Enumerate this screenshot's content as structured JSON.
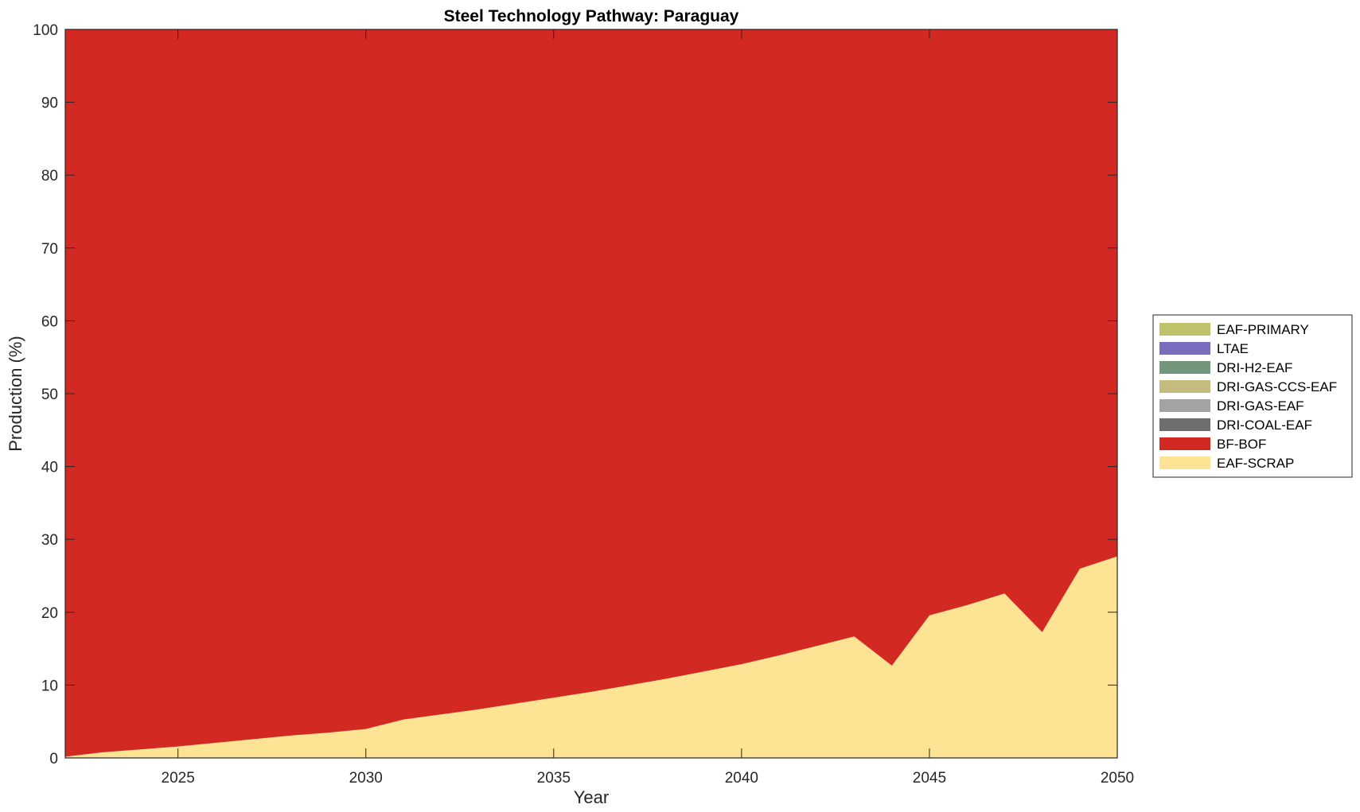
{
  "chart_data": {
    "type": "area",
    "stacked": true,
    "title": "Steel Technology Pathway: Paraguay",
    "xlabel": "Year",
    "ylabel": "Production (%)",
    "xlim": [
      2022,
      2050
    ],
    "ylim": [
      0,
      100
    ],
    "xticks": [
      2025,
      2030,
      2035,
      2040,
      2045,
      2050
    ],
    "yticks": [
      0,
      10,
      20,
      30,
      40,
      50,
      60,
      70,
      80,
      90,
      100
    ],
    "grid": false,
    "legend_position": "right",
    "x": [
      2022,
      2023,
      2024,
      2025,
      2026,
      2027,
      2028,
      2029,
      2030,
      2031,
      2032,
      2033,
      2034,
      2035,
      2036,
      2037,
      2038,
      2039,
      2040,
      2041,
      2042,
      2043,
      2044,
      2045,
      2046,
      2047,
      2048,
      2049,
      2050
    ],
    "series": [
      {
        "name": "EAF-SCRAP",
        "color": "#FDE394",
        "values": [
          0.2,
          0.8,
          1.2,
          1.6,
          2.1,
          2.6,
          3.1,
          3.5,
          4.0,
          5.3,
          6.0,
          6.7,
          7.5,
          8.3,
          9.1,
          10.0,
          10.9,
          11.9,
          12.9,
          14.1,
          15.4,
          16.7,
          12.7,
          19.6,
          21.0,
          22.6,
          17.3,
          26.0,
          27.7
        ]
      },
      {
        "name": "BF-BOF",
        "color": "#D22A23",
        "values": [
          99.8,
          99.2,
          98.8,
          98.4,
          97.9,
          97.4,
          96.9,
          96.5,
          96.0,
          94.7,
          94.0,
          93.3,
          92.5,
          91.7,
          90.9,
          90.0,
          89.1,
          88.1,
          87.1,
          85.9,
          84.6,
          83.3,
          87.3,
          80.4,
          79.0,
          77.4,
          82.7,
          74.0,
          72.3
        ]
      },
      {
        "name": "DRI-COAL-EAF",
        "color": "#6E6E6E",
        "values": [
          0,
          0,
          0,
          0,
          0,
          0,
          0,
          0,
          0,
          0,
          0,
          0,
          0,
          0,
          0,
          0,
          0,
          0,
          0,
          0,
          0,
          0,
          0,
          0,
          0,
          0,
          0,
          0,
          0
        ]
      },
      {
        "name": "DRI-GAS-EAF",
        "color": "#A3A3A3",
        "values": [
          0,
          0,
          0,
          0,
          0,
          0,
          0,
          0,
          0,
          0,
          0,
          0,
          0,
          0,
          0,
          0,
          0,
          0,
          0,
          0,
          0,
          0,
          0,
          0,
          0,
          0,
          0,
          0,
          0
        ]
      },
      {
        "name": "DRI-GAS-CCS-EAF",
        "color": "#C4BC7E",
        "values": [
          0,
          0,
          0,
          0,
          0,
          0,
          0,
          0,
          0,
          0,
          0,
          0,
          0,
          0,
          0,
          0,
          0,
          0,
          0,
          0,
          0,
          0,
          0,
          0,
          0,
          0,
          0,
          0,
          0
        ]
      },
      {
        "name": "DRI-H2-EAF",
        "color": "#72967A",
        "values": [
          0,
          0,
          0,
          0,
          0,
          0,
          0,
          0,
          0,
          0,
          0,
          0,
          0,
          0,
          0,
          0,
          0,
          0,
          0,
          0,
          0,
          0,
          0,
          0,
          0,
          0,
          0,
          0,
          0
        ]
      },
      {
        "name": "LTAE",
        "color": "#7A6DC0",
        "values": [
          0,
          0,
          0,
          0,
          0,
          0,
          0,
          0,
          0,
          0,
          0,
          0,
          0,
          0,
          0,
          0,
          0,
          0,
          0,
          0,
          0,
          0,
          0,
          0,
          0,
          0,
          0,
          0,
          0
        ]
      },
      {
        "name": "EAF-PRIMARY",
        "color": "#BEC26A",
        "values": [
          0,
          0,
          0,
          0,
          0,
          0,
          0,
          0,
          0,
          0,
          0,
          0,
          0,
          0,
          0,
          0,
          0,
          0,
          0,
          0,
          0,
          0,
          0,
          0,
          0,
          0,
          0,
          0,
          0
        ]
      }
    ],
    "legend_order": [
      "EAF-PRIMARY",
      "LTAE",
      "DRI-H2-EAF",
      "DRI-GAS-CCS-EAF",
      "DRI-GAS-EAF",
      "DRI-COAL-EAF",
      "BF-BOF",
      "EAF-SCRAP"
    ]
  }
}
